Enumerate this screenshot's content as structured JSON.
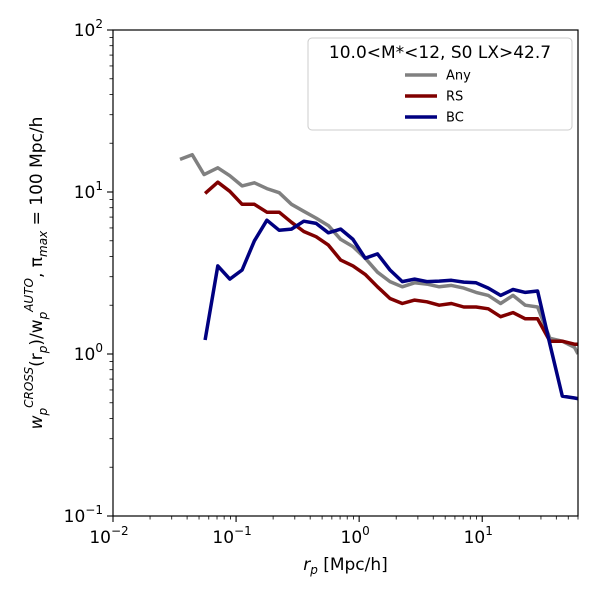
{
  "chart_data": {
    "type": "line",
    "title": "",
    "xlabel_main": "r",
    "xlabel_sub": "p",
    "xlabel_unit": " [Mpc/h]",
    "ylabel_parts": {
      "w1": "w",
      "sub1": "p",
      "sup1": "CROSS",
      "mid1": "(r",
      "sub2": "p",
      "mid2": ")/w",
      "sub3": "p",
      "sup3": "AUTO",
      "mid3": ", π",
      "sub4": "max",
      "tail": " = 100 Mpc/h"
    },
    "x_scale": "log",
    "y_scale": "log",
    "xlim": [
      0.01,
      60
    ],
    "ylim": [
      0.1,
      100
    ],
    "x_ticks": [
      {
        "value": 0.01,
        "base": "10",
        "exp": "−2"
      },
      {
        "value": 0.1,
        "base": "10",
        "exp": "−1"
      },
      {
        "value": 1,
        "base": "10",
        "exp": "0"
      },
      {
        "value": 10,
        "base": "10",
        "exp": "1"
      }
    ],
    "y_ticks": [
      {
        "value": 0.1,
        "base": "10",
        "exp": "−1"
      },
      {
        "value": 1,
        "base": "10",
        "exp": "0"
      },
      {
        "value": 10,
        "base": "10",
        "exp": "1"
      },
      {
        "value": 100,
        "base": "10",
        "exp": "2"
      }
    ],
    "grid": false,
    "legend_title": "10.0<M*<12, S0 LX>42.7",
    "legend_position": "top-right",
    "series": [
      {
        "name": "Any",
        "color": "#808080",
        "x": [
          0.035,
          0.044,
          0.055,
          0.071,
          0.089,
          0.112,
          0.141,
          0.178,
          0.224,
          0.282,
          0.355,
          0.447,
          0.562,
          0.708,
          0.891,
          1.12,
          1.41,
          1.78,
          2.24,
          2.82,
          3.55,
          4.47,
          5.62,
          7.08,
          8.91,
          11.2,
          14.1,
          17.8,
          22.4,
          28.2,
          35.5,
          44.7,
          56.2,
          60
        ],
        "y": [
          15.9,
          17.0,
          12.8,
          14.1,
          12.6,
          10.9,
          11.4,
          10.5,
          9.9,
          8.4,
          7.6,
          6.9,
          6.2,
          5.1,
          4.6,
          3.9,
          3.2,
          2.8,
          2.6,
          2.75,
          2.7,
          2.6,
          2.65,
          2.55,
          2.4,
          2.3,
          2.05,
          2.3,
          2.0,
          1.95,
          1.25,
          1.2,
          1.1,
          1.0
        ]
      },
      {
        "name": "RS",
        "color": "#800000",
        "x": [
          0.056,
          0.071,
          0.089,
          0.112,
          0.141,
          0.178,
          0.224,
          0.282,
          0.355,
          0.447,
          0.562,
          0.708,
          0.891,
          1.12,
          1.41,
          1.78,
          2.24,
          2.82,
          3.55,
          4.47,
          5.62,
          7.08,
          8.91,
          11.2,
          14.1,
          17.8,
          22.4,
          28.2,
          35.5,
          44.7,
          56.2,
          60
        ],
        "y": [
          9.8,
          11.5,
          10.1,
          8.4,
          8.4,
          7.5,
          7.5,
          6.5,
          5.7,
          5.3,
          4.7,
          3.8,
          3.5,
          3.1,
          2.6,
          2.2,
          2.05,
          2.15,
          2.1,
          2.0,
          2.05,
          1.95,
          1.95,
          1.9,
          1.7,
          1.8,
          1.65,
          1.65,
          1.2,
          1.2,
          1.15,
          1.15
        ]
      },
      {
        "name": "BC",
        "color": "#000080",
        "x": [
          0.056,
          0.071,
          0.089,
          0.112,
          0.141,
          0.178,
          0.224,
          0.282,
          0.355,
          0.447,
          0.562,
          0.708,
          0.891,
          1.12,
          1.41,
          1.78,
          2.24,
          2.82,
          3.55,
          4.47,
          5.62,
          7.08,
          8.91,
          11.2,
          14.1,
          17.8,
          22.4,
          28.2,
          35.5,
          44.7,
          56.2,
          60
        ],
        "y": [
          1.22,
          3.5,
          2.9,
          3.3,
          5.0,
          6.7,
          5.8,
          5.9,
          6.6,
          6.4,
          5.6,
          5.9,
          5.1,
          3.9,
          4.15,
          3.3,
          2.8,
          2.9,
          2.8,
          2.82,
          2.85,
          2.78,
          2.75,
          2.55,
          2.3,
          2.5,
          2.4,
          2.45,
          1.15,
          0.55,
          0.535,
          0.53
        ]
      }
    ]
  }
}
